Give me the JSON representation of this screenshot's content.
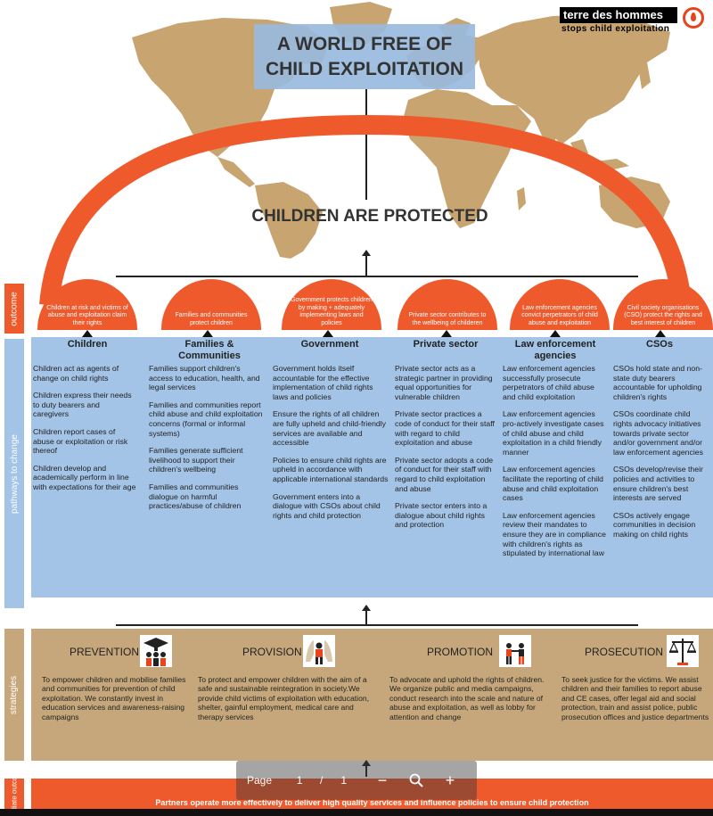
{
  "brand": {
    "name": "terre des hommes",
    "tagline": "stops child exploitation",
    "accent": "#e8431b"
  },
  "title": "A WORLD FREE OF\nCHILD EXPLOITATION",
  "impact": "CHILDREN ARE PROTECTED",
  "band_labels": {
    "outcome": "outcome",
    "pathways": "pathways to change",
    "strategies": "strategies",
    "immediate": "Immediate outcome"
  },
  "outcomes": [
    "Children at risk and victims of abuse and exploitation claim their rights",
    "Families and communities protect children",
    "Government protects children by making + adequately implementing laws and policies",
    "Private sector contributes to the wellbeing of childeren",
    "Law enforcement agencies convict perpetrators of child abuse and exploitation",
    "Civil society organisations (CSO) protect the rights and best interest of children"
  ],
  "pathways": [
    {
      "header": "Children",
      "items": [
        "Children act as agents of change on child rights",
        "Children express their needs to duty bearers and caregivers",
        "Children report cases of abuse or exploitation or risk thereof",
        "Children develop and academically perform in line with expectations for their age"
      ]
    },
    {
      "header": "Families &\nCommunities",
      "items": [
        "Families support children's access to education, health, and legal services",
        "Families and communities report child abuse and child exploitation concerns (formal or informal systems)",
        "Families generate sufficient livelihood to support their children's wellbeing",
        "Families and communities dialogue on harmful practices/abuse of children"
      ]
    },
    {
      "header": "Government",
      "items": [
        "Government holds itself accountable for the effective implementation of child rights laws and policies",
        "Ensure the rights of all children are fully upheld and child-friendly services are available and accessible",
        "Policies to ensure child rights are upheld in accordance with applicable international standards",
        "Government enters into a dialogue with CSOs about child rights and child protection"
      ]
    },
    {
      "header": "Private sector",
      "items": [
        "Private sector acts as a strategic partner in providing equal opportunities for vulnerable children",
        "Private sector practices a code of conduct for their staff with regard to child exploitation and abuse",
        "Private sector adopts a code of conduct for their staff with regard to child exploitation and abuse",
        "Private sector enters into a dialogue about child rights and protection"
      ]
    },
    {
      "header": "Law enforcement\nagencies",
      "items": [
        "Law enforcement agencies successfully prosecute perpetrators of child abuse and child exploitation",
        "Law enforcement agencies pro-actively investigate cases of child abuse and child exploitation in a child friendly manner",
        "Law enforcement agencies facilitate the reporting of child abuse and child exploitation cases",
        "Law enforcement agencies review their mandates to ensure they are in compliance with children's rights as stipulated by international law"
      ]
    },
    {
      "header": "CSOs",
      "items": [
        "CSOs hold state and non-state duty bearers accountable for upholding children's rights",
        "CSOs coordinate child rights advocacy initiatives towards private sector and/or government and/or law enforcement agencies",
        "CSOs develop/revise their policies and activities to ensure children's best interests are served",
        "CSOs actively engage communities in decision making on child rights"
      ]
    }
  ],
  "strategies": [
    {
      "title": "PREVENTION",
      "icon": "graduates-icon",
      "text": "To empower children and mobilise families and communities for prevention of child exploitation. We constantly invest in education services and awareness-raising campaigns"
    },
    {
      "title": "PROVISION",
      "icon": "protecting-hands-icon",
      "text": "To protect and empower children with the aim of a safe and sustainable reintegration in society.We provide child victims of exploitation with education, shelter, gainful employment, medical care and therapy services"
    },
    {
      "title": "PROMOTION",
      "icon": "advocacy-people-icon",
      "text": "To advocate and uphold the rights of children. We organize public and media campaigns, conduct research into the scale and nature of abuse and exploitation, as well as lobby for attention and change"
    },
    {
      "title": "PROSECUTION",
      "icon": "justice-scales-icon",
      "text": "To seek justice for the victims. We assist children and their families to report abuse and CE cases, offer legal aid and social protection, train and assist police, public prosecution offices and justice departments"
    }
  ],
  "immediate_text": "Partners operate more effectively to deliver high quality services and influence policies to ensure child protection",
  "viewer": {
    "page_label": "Page",
    "page_value": "1",
    "separator": "/",
    "total": "1",
    "zoom_out": "−",
    "zoom_in": "+"
  },
  "colors": {
    "orange": "#ef5a2c",
    "blue_panel": "#a3c4e6",
    "tan_panel": "#c6a77b",
    "map": "#c8a570"
  }
}
